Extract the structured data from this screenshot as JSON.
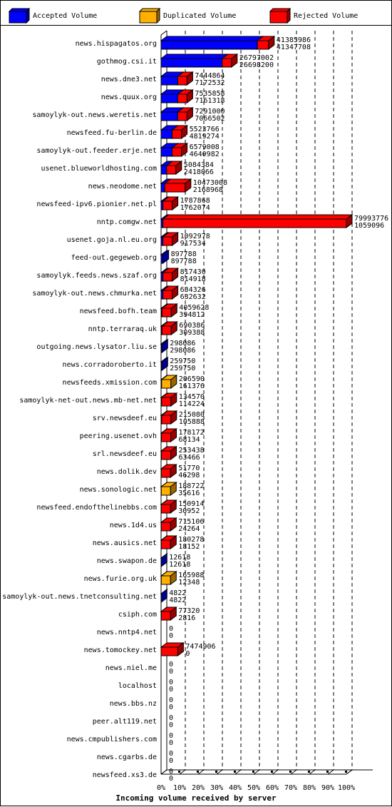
{
  "colors": {
    "accepted": "#0000ff",
    "duplicated": "#ffb000",
    "rejected": "#ff0000",
    "accepted_shade": "#000099",
    "duplicated_shade": "#996600",
    "rejected_shade": "#990000"
  },
  "legend": [
    {
      "key": "accepted",
      "label": "Accepted Volume"
    },
    {
      "key": "duplicated",
      "label": "Duplicated Volume"
    },
    {
      "key": "rejected",
      "label": "Rejected Volume"
    }
  ],
  "chart_data": {
    "type": "bar",
    "orientation": "horizontal",
    "stacked": true,
    "xlabel": "Incoming volume received by server",
    "ylabel": "",
    "xlim": [
      0,
      100
    ],
    "x_unit": "%",
    "grid": "vertical dashed every 10%",
    "legend_position": "top",
    "ticks": [
      "0%",
      "10%",
      "20%",
      "30%",
      "40%",
      "50%",
      "60%",
      "70%",
      "80%",
      "90%",
      "100%"
    ],
    "series": [
      {
        "name": "Accepted Volume",
        "key": "accepted"
      },
      {
        "name": "Duplicated Volume",
        "key": "duplicated"
      },
      {
        "name": "Rejected Volume",
        "key": "rejected"
      }
    ],
    "rows": [
      {
        "server": "news.hispagatos.org",
        "total": "41385986",
        "accepted": "41347708",
        "pct": [
          52,
          0,
          6
        ]
      },
      {
        "server": "gothmog.csi.it",
        "total": "26797002",
        "accepted": "26698200",
        "pct": [
          33,
          0,
          5
        ]
      },
      {
        "server": "news.dne3.net",
        "total": "7444864",
        "accepted": "7172532",
        "pct": [
          9,
          0,
          5
        ]
      },
      {
        "server": "news.quux.org",
        "total": "7535858",
        "accepted": "7161318",
        "pct": [
          9,
          0,
          5
        ]
      },
      {
        "server": "samoylyk-out.news.weretis.net",
        "total": "7291000",
        "accepted": "7066502",
        "pct": [
          9,
          0,
          5
        ]
      },
      {
        "server": "newsfeed.fu-berlin.de",
        "total": "5523766",
        "accepted": "4819274",
        "pct": [
          6,
          0,
          5
        ]
      },
      {
        "server": "samoylyk-out.feeder.erje.net",
        "total": "6579008",
        "accepted": "4640982",
        "pct": [
          6,
          0,
          5
        ]
      },
      {
        "server": "usenet.blueworldhosting.com",
        "total": "5084384",
        "accepted": "2418066",
        "pct": [
          3,
          0,
          5
        ]
      },
      {
        "server": "news.neodome.net",
        "total": "10473008",
        "accepted": "2168968",
        "pct": [
          2,
          0,
          11
        ]
      },
      {
        "server": "newsfeed-ipv6.pionier.net.pl",
        "total": "1787868",
        "accepted": "1762074",
        "pct": [
          1,
          0,
          5
        ]
      },
      {
        "server": "nntp.comgw.net",
        "total": "79993776",
        "accepted": "1059096",
        "pct": [
          1,
          0,
          99
        ]
      },
      {
        "server": "usenet.goja.nl.eu.org",
        "total": "1092978",
        "accepted": "917534",
        "pct": [
          1,
          0,
          5
        ]
      },
      {
        "server": "feed-out.gegeweb.org",
        "total": "897788",
        "accepted": "897788",
        "pct": [
          1,
          0,
          0
        ]
      },
      {
        "server": "samoylyk.feeds.news.szaf.org",
        "total": "817430",
        "accepted": "814918",
        "pct": [
          1,
          0,
          5
        ]
      },
      {
        "server": "samoylyk-out.news.chmurka.net",
        "total": "634326",
        "accepted": "632632",
        "pct": [
          1,
          0,
          5
        ]
      },
      {
        "server": "newsfeed.bofh.team",
        "total": "4059628",
        "accepted": "394812",
        "pct": [
          0.5,
          0,
          5
        ]
      },
      {
        "server": "nntp.terraraq.uk",
        "total": "690386",
        "accepted": "309388",
        "pct": [
          0.5,
          0,
          5
        ]
      },
      {
        "server": "outgoing.news.lysator.liu.se",
        "total": "298086",
        "accepted": "298086",
        "pct": [
          0.5,
          0,
          0
        ]
      },
      {
        "server": "news.corradoroberto.it",
        "total": "259750",
        "accepted": "259750",
        "pct": [
          0.5,
          0,
          0
        ]
      },
      {
        "server": "newsfeeds.xmission.com",
        "total": "206590",
        "accepted": "161376",
        "pct": [
          0.3,
          5,
          0
        ]
      },
      {
        "server": "samoylyk-net-out.news.mb-net.net",
        "total": "134570",
        "accepted": "114224",
        "pct": [
          0.3,
          0,
          5
        ]
      },
      {
        "server": "srv.newsdeef.eu",
        "total": "215080",
        "accepted": "105888",
        "pct": [
          0.3,
          0,
          5
        ]
      },
      {
        "server": "peering.usenet.ovh",
        "total": "178172",
        "accepted": "68134",
        "pct": [
          0.2,
          0,
          5
        ]
      },
      {
        "server": "srl.newsdeef.eu",
        "total": "253438",
        "accepted": "63466",
        "pct": [
          0.2,
          0,
          5
        ]
      },
      {
        "server": "news.dolik.dev",
        "total": "51770",
        "accepted": "46298",
        "pct": [
          0.1,
          0,
          5
        ]
      },
      {
        "server": "news.sonologic.net",
        "total": "188722",
        "accepted": "35616",
        "pct": [
          0.1,
          5,
          0
        ]
      },
      {
        "server": "newsfeed.endofthelinebbs.com",
        "total": "150914",
        "accepted": "30952",
        "pct": [
          0.1,
          0,
          5
        ]
      },
      {
        "server": "news.1d4.us",
        "total": "715106",
        "accepted": "24264",
        "pct": [
          0.1,
          0,
          5
        ]
      },
      {
        "server": "news.ausics.net",
        "total": "180278",
        "accepted": "18152",
        "pct": [
          0.1,
          0,
          5
        ]
      },
      {
        "server": "news.swapon.de",
        "total": "12618",
        "accepted": "12618",
        "pct": [
          0.1,
          0,
          0
        ]
      },
      {
        "server": "news.furie.org.uk",
        "total": "165988",
        "accepted": "12348",
        "pct": [
          0.1,
          5,
          0
        ]
      },
      {
        "server": "samoylyk-out.news.tnetconsulting.net",
        "total": "4822",
        "accepted": "4822",
        "pct": [
          0.1,
          0,
          0
        ]
      },
      {
        "server": "csiph.com",
        "total": "77320",
        "accepted": "2816",
        "pct": [
          0.1,
          0,
          5
        ]
      },
      {
        "server": "news.nntp4.net",
        "total": "0",
        "accepted": "0",
        "pct": [
          0,
          0,
          0
        ]
      },
      {
        "server": "news.tomockey.net",
        "total": "7474906",
        "accepted": "0",
        "pct": [
          0,
          0,
          9
        ]
      },
      {
        "server": "news.niel.me",
        "total": "0",
        "accepted": "0",
        "pct": [
          0,
          0,
          0
        ]
      },
      {
        "server": "localhost",
        "total": "0",
        "accepted": "0",
        "pct": [
          0,
          0,
          0
        ]
      },
      {
        "server": "news.bbs.nz",
        "total": "0",
        "accepted": "0",
        "pct": [
          0,
          0,
          0
        ]
      },
      {
        "server": "peer.alt119.net",
        "total": "0",
        "accepted": "0",
        "pct": [
          0,
          0,
          0
        ]
      },
      {
        "server": "news.cmpublishers.com",
        "total": "0",
        "accepted": "0",
        "pct": [
          0,
          0,
          0
        ]
      },
      {
        "server": "news.cgarbs.de",
        "total": "0",
        "accepted": "0",
        "pct": [
          0,
          0,
          0
        ]
      },
      {
        "server": "newsfeed.xs3.de",
        "total": "0",
        "accepted": "0",
        "pct": [
          0,
          0,
          0
        ]
      }
    ]
  }
}
